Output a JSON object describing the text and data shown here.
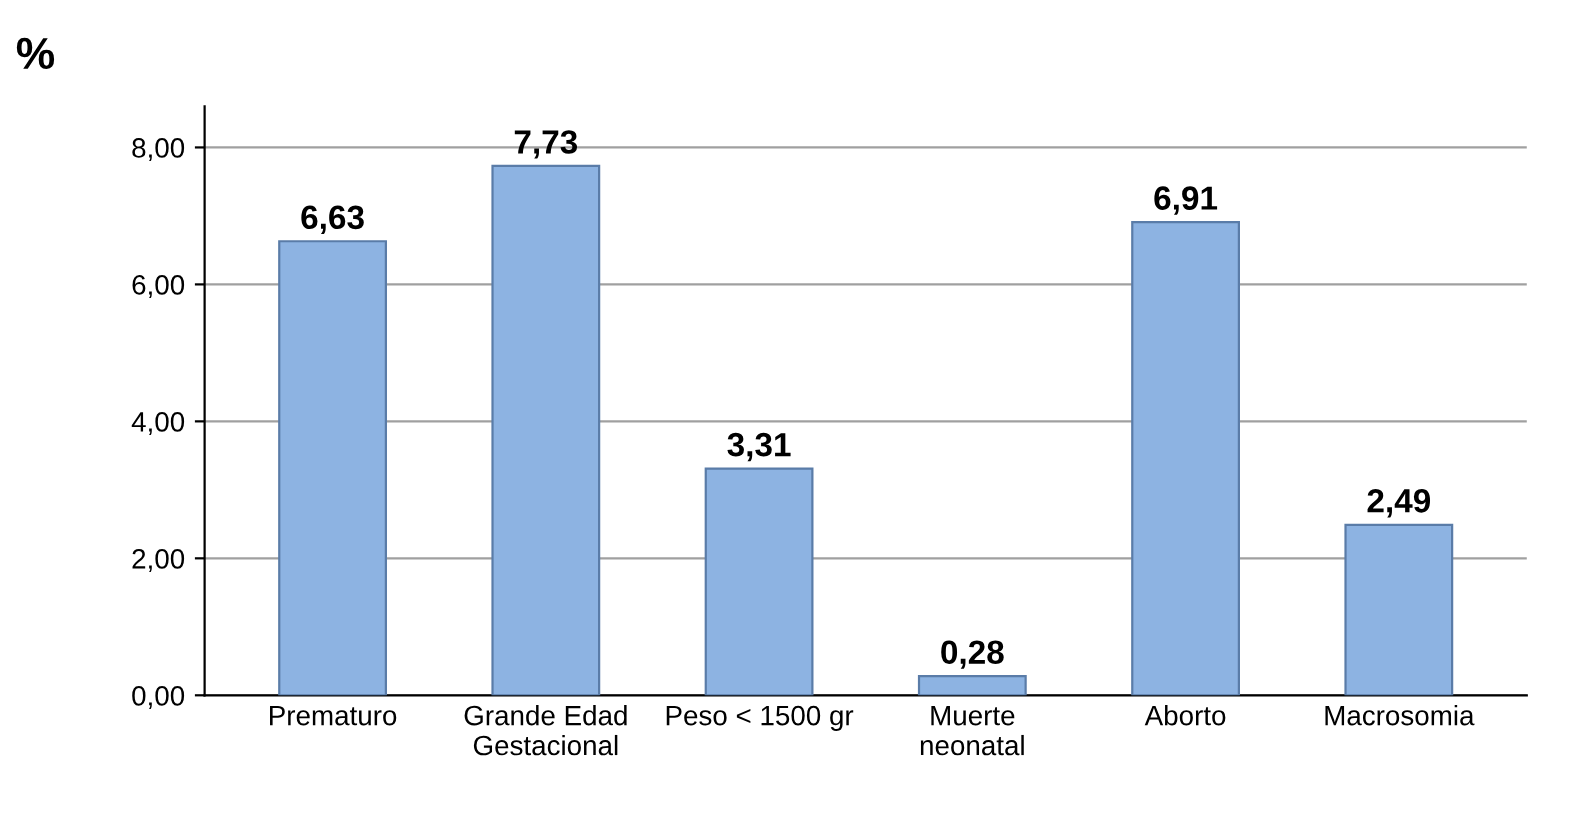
{
  "chart_data": {
    "type": "bar",
    "ylabel": "%",
    "categories": [
      "Prematuro",
      "Grande Edad Gestacional",
      "Peso < 1500 gr",
      "Muerte neonatal",
      "Aborto",
      "Macrosomia"
    ],
    "values": [
      6.63,
      7.73,
      3.31,
      0.28,
      6.91,
      2.49
    ],
    "value_labels": [
      "6,63",
      "7,73",
      "3,31",
      "0,28",
      "6,91",
      "2,49"
    ],
    "color": "#8db3e2",
    "ylim": [
      0,
      8.6
    ],
    "yticks": [
      {
        "value": 0,
        "label": "0,00"
      },
      {
        "value": 2,
        "label": "2,00"
      },
      {
        "value": 4,
        "label": "4,00"
      },
      {
        "value": 6,
        "label": "6,00"
      },
      {
        "value": 8,
        "label": "8,00"
      }
    ],
    "grid": "y"
  }
}
